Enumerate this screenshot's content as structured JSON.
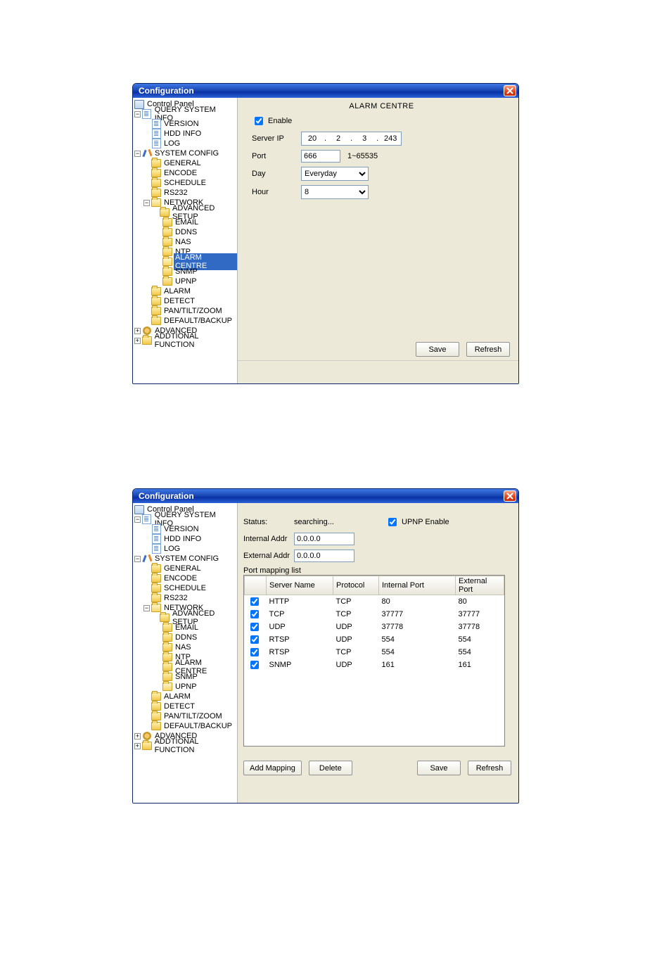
{
  "colors": {
    "titlebar_gradient": [
      "#3f79e6",
      "#1b49b5",
      "#0831a6",
      "#2d62d6"
    ],
    "panel_bg": "#ece9d8",
    "border": "#7f9db9",
    "selection_bg": "#316ac5",
    "selection_fg": "#ffffff",
    "close_btn": "#e1401a"
  },
  "tree": {
    "root": "Control Panel",
    "query_system_info": "QUERY SYSTEM INFO",
    "version": "VERSION",
    "hdd_info": "HDD INFO",
    "log": "LOG",
    "system_config": "SYSTEM CONFIG",
    "general": "GENERAL",
    "encode": "ENCODE",
    "schedule": "SCHEDULE",
    "rs232": "RS232",
    "network": "NETWORK",
    "advanced_setup": "ADVANCED SETUP",
    "email": "EMAIL",
    "ddns": "DDNS",
    "nas": "NAS",
    "ntp": "NTP",
    "alarm_centre": "ALARM CENTRE",
    "snmp": "SNMP",
    "upnp": "UPNP",
    "alarm": "ALARM",
    "detect": "DETECT",
    "ptz": "PAN/TILT/ZOOM",
    "default_backup": "DEFAULT/BACKUP",
    "advanced": "ADVANCED",
    "addtional": "ADDTIONAL FUNCTION"
  },
  "win1": {
    "title": "Configuration",
    "heading": "ALARM CENTRE",
    "enable_label": "Enable",
    "enable_checked": true,
    "server_ip_label": "Server IP",
    "ip": {
      "a": "20",
      "b": "2",
      "c": "3",
      "d": "243"
    },
    "port_label": "Port",
    "port_value": "666",
    "port_hint": "1~65535",
    "day_label": "Day",
    "day_value": "Everyday",
    "hour_label": "Hour",
    "hour_value": "8",
    "save": "Save",
    "refresh": "Refresh"
  },
  "win2": {
    "title": "Configuration",
    "status_label": "Status:",
    "status_value": "searching...",
    "upnp_enable_label": "UPNP Enable",
    "upnp_checked": true,
    "internal_label": "Internal Addr",
    "internal_value": "0.0.0.0",
    "external_label": "External Addr",
    "external_value": "0.0.0.0",
    "list_caption": "Port mapping list",
    "columns": {
      "c0": "",
      "c1": "Server Name",
      "c2": "Protocol",
      "c3": "Internal Port",
      "c4": "External Port"
    },
    "rows": [
      {
        "checked": true,
        "name": "HTTP",
        "proto": "TCP",
        "ip": "80",
        "ep": "80"
      },
      {
        "checked": true,
        "name": "TCP",
        "proto": "TCP",
        "ip": "37777",
        "ep": "37777"
      },
      {
        "checked": true,
        "name": "UDP",
        "proto": "UDP",
        "ip": "37778",
        "ep": "37778"
      },
      {
        "checked": true,
        "name": "RTSP",
        "proto": "UDP",
        "ip": "554",
        "ep": "554"
      },
      {
        "checked": true,
        "name": "RTSP",
        "proto": "TCP",
        "ip": "554",
        "ep": "554"
      },
      {
        "checked": true,
        "name": "SNMP",
        "proto": "UDP",
        "ip": "161",
        "ep": "161"
      }
    ],
    "add_mapping": "Add Mapping",
    "delete": "Delete",
    "save": "Save",
    "refresh": "Refresh"
  }
}
